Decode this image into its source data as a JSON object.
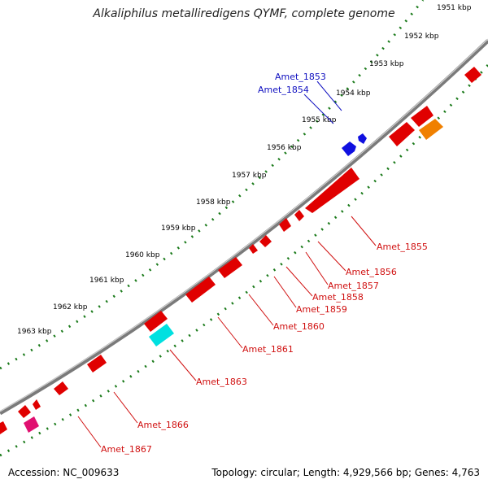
{
  "title": "Alkaliphilus metalliredigens QYMF, complete genome",
  "footer": {
    "accession": "Accession: NC_009633",
    "summary": "Topology: circular; Length: 4,929,566 bp; Genes: 4,763"
  },
  "ticks": [
    "1951 kbp",
    "1952 kbp",
    "1953 kbp",
    "1954 kbp",
    "1955 kbp",
    "1956 kbp",
    "1957 kbp",
    "1958 kbp",
    "1959 kbp",
    "1960 kbp",
    "1961 kbp",
    "1962 kbp",
    "1963 kbp"
  ],
  "colors": {
    "backbone": "#7a7a7a",
    "tick_dots": "#1a7a1a",
    "forward_gene_label": "#1010c0",
    "reverse_gene_label": "#d01010",
    "gene_red": "#e00000",
    "gene_blue": "#1010e0",
    "gene_orange": "#f08000",
    "gene_cyan": "#00e0e0",
    "gene_pink": "#e01070"
  },
  "gene_labels": [
    {
      "name": "Amet_1853",
      "strand": "forward"
    },
    {
      "name": "Amet_1854",
      "strand": "forward"
    },
    {
      "name": "Amet_1855",
      "strand": "reverse"
    },
    {
      "name": "Amet_1856",
      "strand": "reverse"
    },
    {
      "name": "Amet_1857",
      "strand": "reverse"
    },
    {
      "name": "Amet_1858",
      "strand": "reverse"
    },
    {
      "name": "Amet_1859",
      "strand": "reverse"
    },
    {
      "name": "Amet_1860",
      "strand": "reverse"
    },
    {
      "name": "Amet_1861",
      "strand": "reverse"
    },
    {
      "name": "Amet_1863",
      "strand": "reverse"
    },
    {
      "name": "Amet_1866",
      "strand": "reverse"
    },
    {
      "name": "Amet_1867",
      "strand": "reverse"
    }
  ]
}
